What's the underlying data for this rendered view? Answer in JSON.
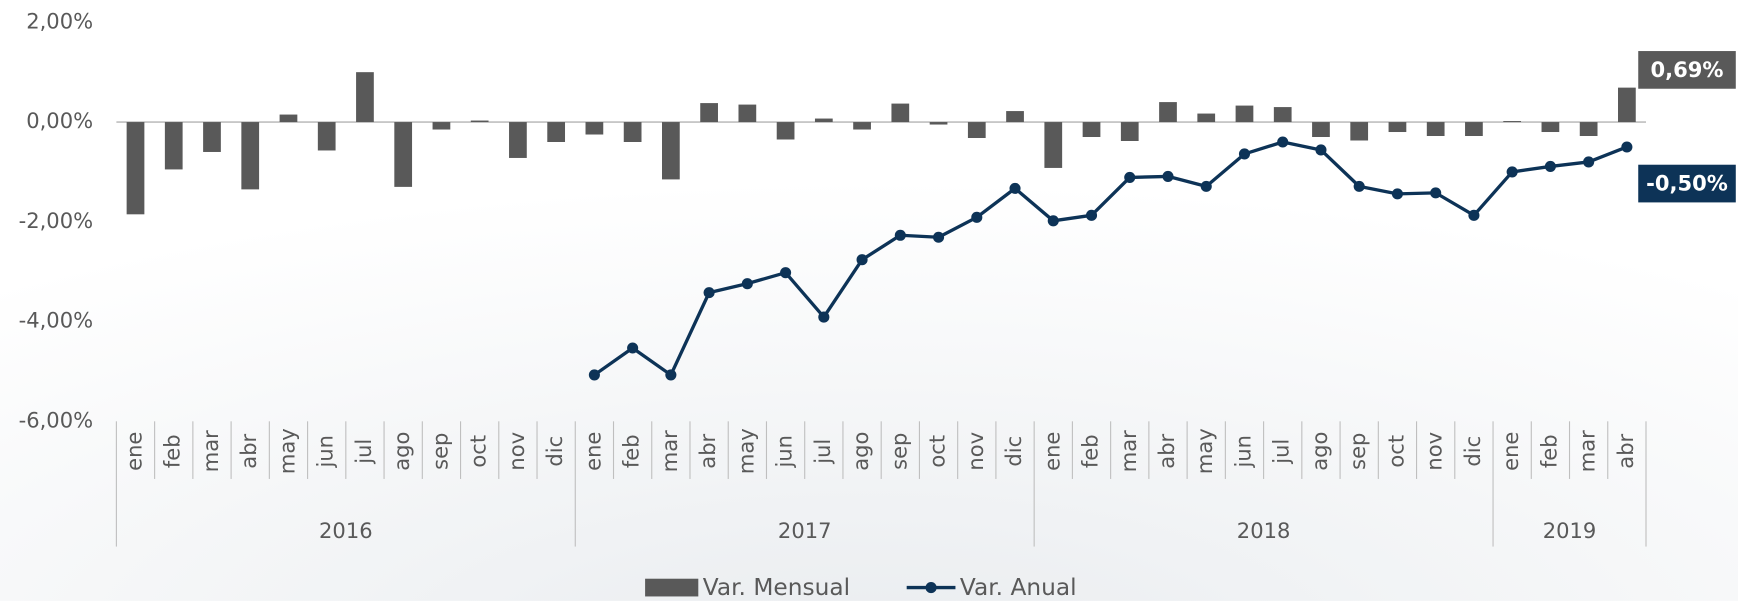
{
  "chart_data": {
    "type": "bar_line",
    "category_groups": [
      {
        "label": "2016",
        "categories": [
          "ene",
          "feb",
          "mar",
          "abr",
          "may",
          "jun",
          "jul",
          "ago",
          "sep",
          "oct",
          "nov",
          "dic"
        ]
      },
      {
        "label": "2017",
        "categories": [
          "ene",
          "feb",
          "mar",
          "abr",
          "may",
          "jun",
          "jul",
          "ago",
          "sep",
          "oct",
          "nov",
          "dic"
        ]
      },
      {
        "label": "2018",
        "categories": [
          "ene",
          "feb",
          "mar",
          "abr",
          "may",
          "jun",
          "jul",
          "ago",
          "sep",
          "oct",
          "nov",
          "dic"
        ]
      },
      {
        "label": "2019",
        "categories": [
          "ene",
          "feb",
          "mar",
          "abr"
        ]
      }
    ],
    "series": [
      {
        "name": "Var. Mensual",
        "type": "bar",
        "color": "#595959",
        "values": [
          -1.85,
          -0.95,
          -0.6,
          -1.35,
          0.15,
          -0.57,
          1.0,
          -1.3,
          -0.15,
          0.03,
          -0.72,
          -0.4,
          -0.25,
          -0.4,
          -1.15,
          0.38,
          0.35,
          -0.35,
          0.07,
          -0.15,
          0.37,
          -0.05,
          -0.32,
          0.22,
          -0.92,
          -0.3,
          -0.38,
          0.4,
          0.17,
          0.33,
          0.3,
          -0.3,
          -0.37,
          -0.2,
          -0.28,
          -0.28,
          0.02,
          -0.2,
          -0.28,
          0.69
        ],
        "value_labels": [
          null,
          null,
          null,
          null,
          null,
          null,
          null,
          null,
          null,
          null,
          null,
          null,
          null,
          null,
          null,
          null,
          null,
          null,
          null,
          null,
          null,
          null,
          null,
          null,
          null,
          null,
          null,
          null,
          null,
          null,
          null,
          null,
          null,
          null,
          null,
          null,
          null,
          null,
          null,
          "0,69%"
        ]
      },
      {
        "name": "Var. Anual",
        "type": "line",
        "color": "#0d3357",
        "values": [
          null,
          null,
          null,
          null,
          null,
          null,
          null,
          null,
          null,
          null,
          null,
          null,
          -5.07,
          -4.53,
          -5.07,
          -3.42,
          -3.24,
          -3.02,
          -3.91,
          -2.76,
          -2.27,
          -2.31,
          -1.91,
          -1.33,
          -1.98,
          -1.87,
          -1.11,
          -1.09,
          -1.29,
          -0.64,
          -0.4,
          -0.56,
          -1.29,
          -1.44,
          -1.42,
          -1.87,
          -1.0,
          -0.89,
          -0.8,
          -0.5
        ],
        "value_labels": [
          null,
          null,
          null,
          null,
          null,
          null,
          null,
          null,
          null,
          null,
          null,
          null,
          null,
          null,
          null,
          null,
          null,
          null,
          null,
          null,
          null,
          null,
          null,
          null,
          null,
          null,
          null,
          null,
          null,
          null,
          null,
          null,
          null,
          null,
          null,
          null,
          null,
          null,
          null,
          "-0,50%"
        ]
      }
    ],
    "ylim": [
      -6,
      2
    ],
    "yticks": [
      {
        "value": -6,
        "label": "-6,00%"
      },
      {
        "value": -4,
        "label": "-4,00%"
      },
      {
        "value": -2,
        "label": "-2,00%"
      },
      {
        "value": 0,
        "label": "0,00%"
      },
      {
        "value": 2,
        "label": "2,00%"
      }
    ],
    "legend": "bottom"
  }
}
